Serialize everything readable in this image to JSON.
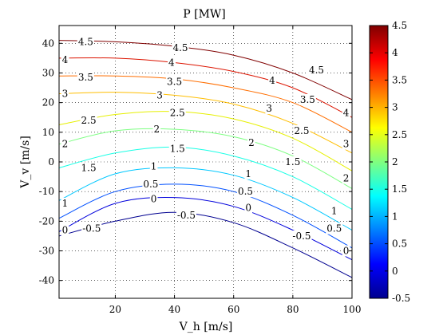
{
  "chart_data": {
    "type": "contour",
    "title": "P  [MW]",
    "xlabel": "V_h  [m/s]",
    "ylabel": "V_v  [m/s]",
    "xlim": [
      1,
      100
    ],
    "ylim": [
      -46,
      46
    ],
    "x_ticks": [
      20,
      40,
      60,
      80,
      100
    ],
    "y_ticks": [
      -40,
      -30,
      -20,
      -10,
      0,
      10,
      20,
      30,
      40
    ],
    "grid": true,
    "colorbar": {
      "clim": [
        -0.5,
        4.5
      ],
      "ticks": [
        "4.5",
        "4",
        "3.5",
        "3",
        "2.5",
        "2",
        "1.5",
        "1",
        "0.5",
        "0",
        "-0.5"
      ],
      "colormap": "jet"
    },
    "levels": [
      {
        "level": 4.5,
        "label": "4.5",
        "color": "#800000",
        "points": [
          [
            1,
            41
          ],
          [
            20,
            40.5
          ],
          [
            40,
            39
          ],
          [
            60,
            36
          ],
          [
            80,
            30
          ],
          [
            100,
            21
          ]
        ]
      },
      {
        "level": 4,
        "label": "4",
        "color": "#dc1400",
        "points": [
          [
            1,
            35
          ],
          [
            20,
            35
          ],
          [
            40,
            33.5
          ],
          [
            60,
            30.5
          ],
          [
            80,
            25
          ],
          [
            100,
            15
          ]
        ]
      },
      {
        "level": 3.5,
        "label": "3.5",
        "color": "#ff6e00",
        "points": [
          [
            1,
            29
          ],
          [
            20,
            29
          ],
          [
            40,
            28
          ],
          [
            60,
            25
          ],
          [
            80,
            20
          ],
          [
            100,
            10
          ]
        ]
      },
      {
        "level": 3,
        "label": "3",
        "color": "#ffbe00",
        "points": [
          [
            1,
            23
          ],
          [
            20,
            23.5
          ],
          [
            40,
            22.5
          ],
          [
            60,
            19.5
          ],
          [
            80,
            13
          ],
          [
            100,
            3
          ]
        ]
      },
      {
        "level": 2.5,
        "label": "2.5",
        "color": "#e6f000",
        "points": [
          [
            1,
            12.5
          ],
          [
            20,
            16
          ],
          [
            40,
            17
          ],
          [
            60,
            14.5
          ],
          [
            80,
            8
          ],
          [
            100,
            -3
          ]
        ]
      },
      {
        "level": 2,
        "label": "2",
        "color": "#7dff82",
        "points": [
          [
            1,
            6
          ],
          [
            20,
            10.5
          ],
          [
            40,
            11
          ],
          [
            60,
            8.5
          ],
          [
            80,
            2
          ],
          [
            100,
            -9
          ]
        ]
      },
      {
        "level": 1.5,
        "label": "1.5",
        "color": "#19ffe6",
        "points": [
          [
            1,
            -2
          ],
          [
            20,
            3
          ],
          [
            40,
            5
          ],
          [
            60,
            2
          ],
          [
            80,
            -5
          ],
          [
            100,
            -16
          ]
        ]
      },
      {
        "level": 1,
        "label": "1",
        "color": "#00c8ff",
        "points": [
          [
            1,
            -13
          ],
          [
            20,
            -4
          ],
          [
            40,
            -2
          ],
          [
            60,
            -4.5
          ],
          [
            80,
            -12
          ],
          [
            100,
            -23
          ]
        ]
      },
      {
        "level": 0.5,
        "label": "0.5",
        "color": "#0050ff",
        "points": [
          [
            1,
            -19
          ],
          [
            20,
            -10
          ],
          [
            40,
            -7.5
          ],
          [
            60,
            -10
          ],
          [
            80,
            -18
          ],
          [
            100,
            -29
          ]
        ]
      },
      {
        "level": 0,
        "label": "0",
        "color": "#0000dc",
        "points": [
          [
            1,
            -23.5
          ],
          [
            20,
            -14
          ],
          [
            40,
            -12
          ],
          [
            60,
            -15
          ],
          [
            80,
            -23
          ],
          [
            100,
            -33
          ]
        ]
      },
      {
        "level": -0.5,
        "label": "-0.5",
        "color": "#000090",
        "points": [
          [
            1,
            -25
          ],
          [
            20,
            -20
          ],
          [
            40,
            -17
          ],
          [
            60,
            -20.5
          ],
          [
            80,
            -29
          ],
          [
            100,
            -39
          ]
        ]
      }
    ],
    "contour_labels": [
      {
        "text": "4.5",
        "x": 10,
        "y": 40.5
      },
      {
        "text": "4.5",
        "x": 42,
        "y": 38.5
      },
      {
        "text": "4.5",
        "x": 88,
        "y": 31
      },
      {
        "text": "4",
        "x": 3,
        "y": 34.5
      },
      {
        "text": "4",
        "x": 39,
        "y": 33.5
      },
      {
        "text": "4",
        "x": 73,
        "y": 27.5
      },
      {
        "text": "4",
        "x": 98,
        "y": 16.5
      },
      {
        "text": "3.5",
        "x": 10,
        "y": 28.5
      },
      {
        "text": "3.5",
        "x": 40,
        "y": 27
      },
      {
        "text": "3.5",
        "x": 85,
        "y": 21
      },
      {
        "text": "3",
        "x": 3,
        "y": 23
      },
      {
        "text": "3",
        "x": 35,
        "y": 22.5
      },
      {
        "text": "3",
        "x": 72,
        "y": 18
      },
      {
        "text": "3",
        "x": 98,
        "y": 6
      },
      {
        "text": "2.5",
        "x": 11,
        "y": 14
      },
      {
        "text": "2.5",
        "x": 41,
        "y": 16.5
      },
      {
        "text": "2.5",
        "x": 83,
        "y": 10.5
      },
      {
        "text": "2",
        "x": 3,
        "y": 6
      },
      {
        "text": "2",
        "x": 34,
        "y": 11
      },
      {
        "text": "2",
        "x": 66,
        "y": 6.5
      },
      {
        "text": "2",
        "x": 98,
        "y": -5.5
      },
      {
        "text": "1.5",
        "x": 11,
        "y": -2
      },
      {
        "text": "1.5",
        "x": 41,
        "y": 4.5
      },
      {
        "text": "1.5",
        "x": 80,
        "y": 0
      },
      {
        "text": "1",
        "x": 33,
        "y": -1.5
      },
      {
        "text": "1",
        "x": 65,
        "y": -4
      },
      {
        "text": "1",
        "x": 3,
        "y": -14
      },
      {
        "text": "1",
        "x": 94,
        "y": -16.5
      },
      {
        "text": "0.5",
        "x": 32,
        "y": -7.5
      },
      {
        "text": "0.5",
        "x": 64,
        "y": -10
      },
      {
        "text": "0.5",
        "x": 94,
        "y": -22.5
      },
      {
        "text": "0",
        "x": 33,
        "y": -12.5
      },
      {
        "text": "0",
        "x": 65,
        "y": -15.5
      },
      {
        "text": "0",
        "x": 3,
        "y": -23
      },
      {
        "text": "0",
        "x": 98,
        "y": -30
      },
      {
        "text": "-0.5",
        "x": 12,
        "y": -22.5
      },
      {
        "text": "-0.5",
        "x": 44,
        "y": -18
      },
      {
        "text": "-0.5",
        "x": 83,
        "y": -25
      }
    ]
  }
}
